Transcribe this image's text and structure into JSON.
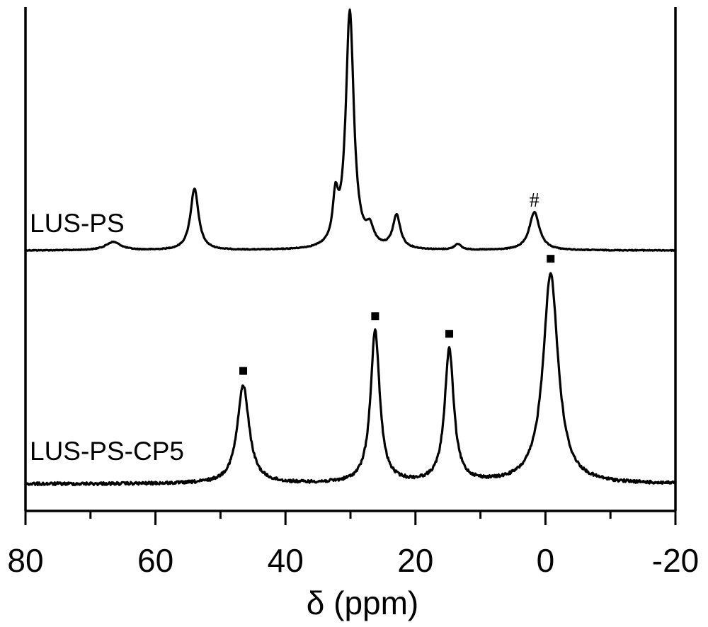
{
  "chart_data": {
    "type": "line",
    "title": "",
    "xlabel": "δ (ppm)",
    "ylabel": "",
    "xlim": [
      80,
      -20
    ],
    "x_reversed": true,
    "x_ticks": [
      80,
      60,
      40,
      20,
      0,
      -20
    ],
    "x_tick_labels": [
      "80",
      "60",
      "40",
      "20",
      "0",
      "-20"
    ],
    "x_minor_ticks": [
      70,
      50,
      30,
      10,
      -10
    ],
    "y_ticks": [],
    "grid": false,
    "legend": "none",
    "series": [
      {
        "name": "LUS-PS",
        "baseline": 0,
        "peaks": [
          {
            "x": 66.5,
            "height": 0.035,
            "width": 1.4
          },
          {
            "x": 54.0,
            "height": 0.26,
            "width": 0.75
          },
          {
            "x": 32.3,
            "height": 0.18,
            "width": 0.5
          },
          {
            "x": 30.1,
            "height": 1.0,
            "width": 0.75
          },
          {
            "x": 27.0,
            "height": 0.07,
            "width": 0.7
          },
          {
            "x": 22.9,
            "height": 0.14,
            "width": 0.7
          },
          {
            "x": 13.5,
            "height": 0.025,
            "width": 0.6
          },
          {
            "x": 1.7,
            "height": 0.16,
            "width": 0.95
          }
        ]
      },
      {
        "name": "LUS-PS-CP5",
        "baseline": 0,
        "peaks": [
          {
            "x": 46.5,
            "height": 0.42,
            "width": 1.1
          },
          {
            "x": 26.2,
            "height": 0.65,
            "width": 0.85
          },
          {
            "x": 14.8,
            "height": 0.57,
            "width": 0.85
          },
          {
            "x": -0.8,
            "height": 0.9,
            "width": 1.4
          }
        ]
      }
    ],
    "annotations": [
      {
        "text": "#",
        "x": 1.7,
        "series": "LUS-PS"
      }
    ],
    "peak_markers": [
      {
        "x": 46.5,
        "series": "LUS-PS-CP5"
      },
      {
        "x": 26.2,
        "series": "LUS-PS-CP5"
      },
      {
        "x": 14.8,
        "series": "LUS-PS-CP5"
      },
      {
        "x": -0.8,
        "series": "LUS-PS-CP5"
      }
    ]
  }
}
